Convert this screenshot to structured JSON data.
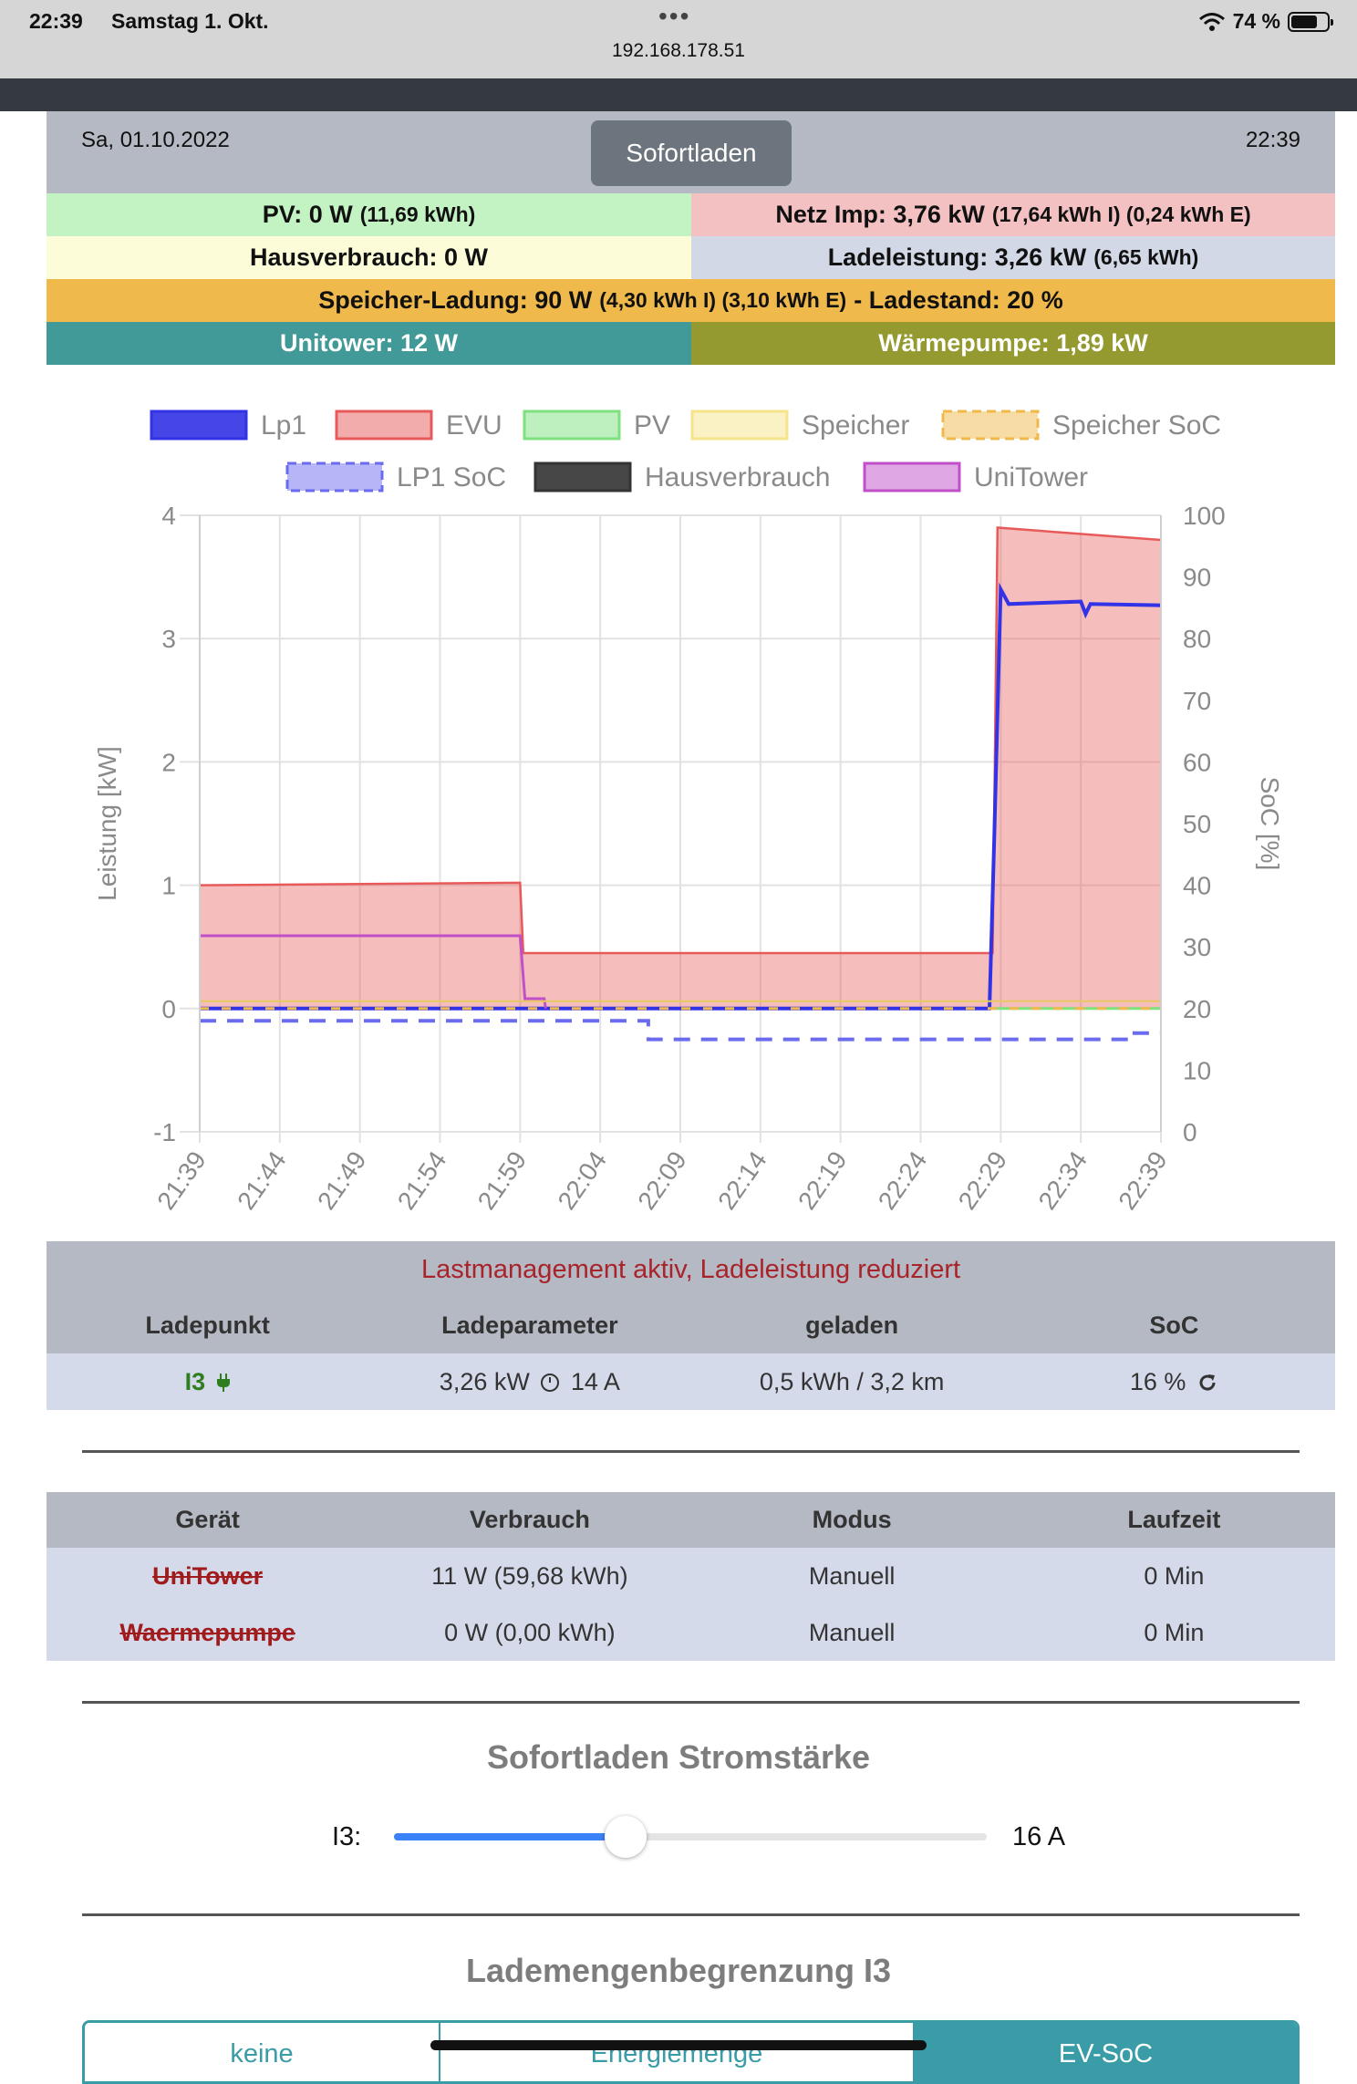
{
  "statusbar": {
    "time": "22:39",
    "date": "Samstag 1. Okt.",
    "url": "192.168.178.51",
    "battery": "74 %",
    "battery_level": 0.74
  },
  "header": {
    "date": "Sa, 01.10.2022",
    "time": "22:39",
    "button": "Sofortladen"
  },
  "info": {
    "pv_main": "PV: 0 W",
    "pv_small": "(11,69 kWh)",
    "netz_main": "Netz Imp: 3,76 kW",
    "netz_small": "(17,64 kWh I) (0,24 kWh E)",
    "haus_main": "Hausverbrauch: 0 W",
    "ladel_main": "Ladeleistung: 3,26 kW",
    "ladel_small": "(6,65 kWh)",
    "speicher_main": "Speicher-Ladung: 90 W",
    "speicher_small": "(4,30 kWh I) (3,10 kWh E)",
    "speicher_tail": "- Ladestand: 20 %",
    "unitower": "Unitower: 12 W",
    "waerme": "Wärmepumpe: 1,89 kW"
  },
  "chart_data": {
    "type": "line",
    "ylabel_left": "Leistung [kW]",
    "ylabel_right": "SoC [%]",
    "ylim_left": [
      -1,
      4
    ],
    "ylim_right": [
      0,
      100
    ],
    "yticks_left": [
      "4",
      "3",
      "2",
      "1",
      "0",
      "-1"
    ],
    "yticks_right": [
      "100",
      "90",
      "80",
      "70",
      "60",
      "50",
      "40",
      "30",
      "20",
      "10",
      "0"
    ],
    "x_ticks": [
      "21:39",
      "21:44",
      "21:49",
      "21:54",
      "21:59",
      "22:04",
      "22:09",
      "22:14",
      "22:19",
      "22:24",
      "22:29",
      "22:34",
      "22:39"
    ],
    "legend": [
      {
        "name": "Lp1",
        "color": "#3232e6"
      },
      {
        "name": "EVU",
        "color": "#e85a5a"
      },
      {
        "name": "PV",
        "color": "#7ee07e"
      },
      {
        "name": "Speicher",
        "color": "#f5e48a"
      },
      {
        "name": "Speicher SoC",
        "color": "#f0b94b"
      },
      {
        "name": "LP1 SoC",
        "color": "#6b6bf0"
      },
      {
        "name": "Hausverbrauch",
        "color": "#333333"
      },
      {
        "name": "UniTower",
        "color": "#c050c8"
      }
    ],
    "series": [
      {
        "name": "EVU",
        "axis": "left",
        "points": [
          [
            0,
            1.0
          ],
          [
            20,
            1.02
          ],
          [
            20.2,
            0.45
          ],
          [
            49.5,
            0.45
          ],
          [
            49.8,
            3.9
          ],
          [
            60,
            3.8
          ]
        ]
      },
      {
        "name": "Lp1",
        "axis": "left",
        "points": [
          [
            0,
            0
          ],
          [
            49.3,
            0
          ],
          [
            49.6,
            1.4
          ],
          [
            50,
            3.4
          ],
          [
            50.5,
            3.28
          ],
          [
            55,
            3.3
          ],
          [
            55.3,
            3.2
          ],
          [
            55.6,
            3.28
          ],
          [
            60,
            3.27
          ]
        ]
      },
      {
        "name": "UniTower",
        "axis": "left",
        "points": [
          [
            0,
            0.59
          ],
          [
            20,
            0.59
          ],
          [
            20.3,
            0.08
          ],
          [
            21.5,
            0.08
          ],
          [
            21.6,
            0
          ]
        ]
      },
      {
        "name": "Speicher",
        "axis": "left",
        "points": [
          [
            0,
            0.06
          ],
          [
            60,
            0.06
          ]
        ]
      },
      {
        "name": "PV",
        "axis": "left",
        "points": [
          [
            49.5,
            0.0
          ],
          [
            60,
            0.0
          ]
        ]
      },
      {
        "name": "LP1 SoC",
        "axis": "right",
        "points": [
          [
            0,
            18
          ],
          [
            28,
            18
          ],
          [
            28,
            15
          ],
          [
            58,
            15
          ],
          [
            58,
            16
          ],
          [
            60,
            16
          ]
        ]
      },
      {
        "name": "Speicher SoC",
        "axis": "right",
        "points": [
          [
            0,
            20
          ],
          [
            60,
            20
          ]
        ]
      }
    ]
  },
  "lp_table": {
    "title": "Lastmanagement aktiv, Ladeleistung reduziert",
    "headers": [
      "Ladepunkt",
      "Ladeparameter",
      "geladen",
      "SoC"
    ],
    "row": {
      "name": "I3",
      "param": "3,26 kW",
      "param_tail": "14 A",
      "charged": "0,5 kWh / 3,2 km",
      "soc": "16 %"
    }
  },
  "dev_table": {
    "headers": [
      "Gerät",
      "Verbrauch",
      "Modus",
      "Laufzeit"
    ],
    "rows": [
      {
        "name": "UniTower",
        "verbrauch": "11 W (59,68 kWh)",
        "modus": "Manuell",
        "laufzeit": "0 Min"
      },
      {
        "name": "Waermepumpe",
        "verbrauch": "0 W (0,00 kWh)",
        "modus": "Manuell",
        "laufzeit": "0 Min"
      }
    ]
  },
  "slider": {
    "title": "Sofortladen Stromstärke",
    "label": "I3:",
    "value": "16 A",
    "fraction": 0.39
  },
  "lademenge": {
    "title": "Lademengenbegrenzung I3",
    "tabs": [
      "keine",
      "Energiemenge",
      "EV-SoC"
    ],
    "active": "EV-SoC"
  }
}
